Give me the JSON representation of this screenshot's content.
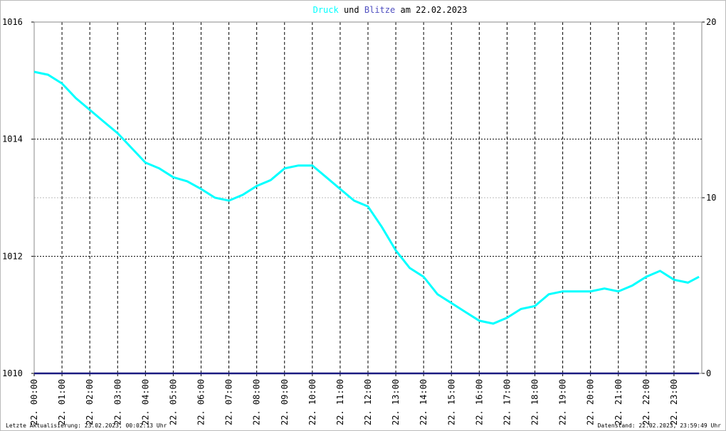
{
  "chart_data": {
    "type": "line",
    "title_joiner": "und",
    "title_suffix": "am 22.02.2023",
    "footer_left": "Letzte Aktualisierung: 23.02.2023, 00:02:13 Uhr",
    "footer_right": "Datenstand: 22.02.2023, 23:59:49 Uhr",
    "xlim": [
      0,
      24
    ],
    "xticks": [
      {
        "value": 0,
        "label": "22. 00:00"
      },
      {
        "value": 1,
        "label": "22. 01:00"
      },
      {
        "value": 2,
        "label": "22. 02:00"
      },
      {
        "value": 3,
        "label": "22. 03:00"
      },
      {
        "value": 4,
        "label": "22. 04:00"
      },
      {
        "value": 5,
        "label": "22. 05:00"
      },
      {
        "value": 6,
        "label": "22. 06:00"
      },
      {
        "value": 7,
        "label": "22. 07:00"
      },
      {
        "value": 8,
        "label": "22. 08:00"
      },
      {
        "value": 9,
        "label": "22. 09:00"
      },
      {
        "value": 10,
        "label": "22. 10:00"
      },
      {
        "value": 11,
        "label": "22. 11:00"
      },
      {
        "value": 12,
        "label": "22. 12:00"
      },
      {
        "value": 13,
        "label": "22. 13:00"
      },
      {
        "value": 14,
        "label": "22. 14:00"
      },
      {
        "value": 15,
        "label": "22. 15:00"
      },
      {
        "value": 16,
        "label": "22. 16:00"
      },
      {
        "value": 17,
        "label": "22. 17:00"
      },
      {
        "value": 18,
        "label": "22. 18:00"
      },
      {
        "value": 19,
        "label": "22. 19:00"
      },
      {
        "value": 20,
        "label": "22. 20:00"
      },
      {
        "value": 21,
        "label": "22. 21:00"
      },
      {
        "value": 22,
        "label": "22. 22:00"
      },
      {
        "value": 23,
        "label": "22. 23:00"
      }
    ],
    "ylim": [
      1010,
      1016
    ],
    "yticks": [
      1010,
      1012,
      1014,
      1016
    ],
    "y2lim": [
      0,
      20
    ],
    "y2ticks": [
      0,
      10,
      20
    ],
    "grid": true,
    "series": [
      {
        "name": "Druck",
        "color": "#00ffff",
        "x": [
          0,
          0.5,
          1,
          1.5,
          2,
          2.5,
          3,
          3.5,
          4,
          4.5,
          5,
          5.5,
          6,
          6.5,
          7,
          7.5,
          8,
          8.5,
          9,
          9.5,
          10,
          10.5,
          11,
          11.5,
          12,
          12.5,
          13,
          13.5,
          14,
          14.5,
          15,
          15.5,
          16,
          16.5,
          17,
          17.5,
          18,
          18.5,
          19,
          19.5,
          20,
          20.5,
          21,
          21.5,
          22,
          22.5,
          23,
          23.5,
          23.9
        ],
        "values": [
          1015.15,
          1015.1,
          1014.95,
          1014.7,
          1014.5,
          1014.3,
          1014.1,
          1013.85,
          1013.6,
          1013.5,
          1013.35,
          1013.28,
          1013.15,
          1013.0,
          1012.95,
          1013.05,
          1013.2,
          1013.3,
          1013.5,
          1013.55,
          1013.55,
          1013.35,
          1013.15,
          1012.95,
          1012.85,
          1012.5,
          1012.1,
          1011.8,
          1011.65,
          1011.35,
          1011.2,
          1011.05,
          1010.9,
          1010.85,
          1010.95,
          1011.1,
          1011.15,
          1011.35,
          1011.4,
          1011.4,
          1011.4,
          1011.45,
          1011.4,
          1011.5,
          1011.65,
          1011.75,
          1011.6,
          1011.55,
          1011.65
        ]
      },
      {
        "name": "Blitze",
        "color": "#1a1a80",
        "axis": "y2",
        "x": [
          0,
          23.9
        ],
        "values": [
          0,
          0
        ]
      }
    ]
  }
}
